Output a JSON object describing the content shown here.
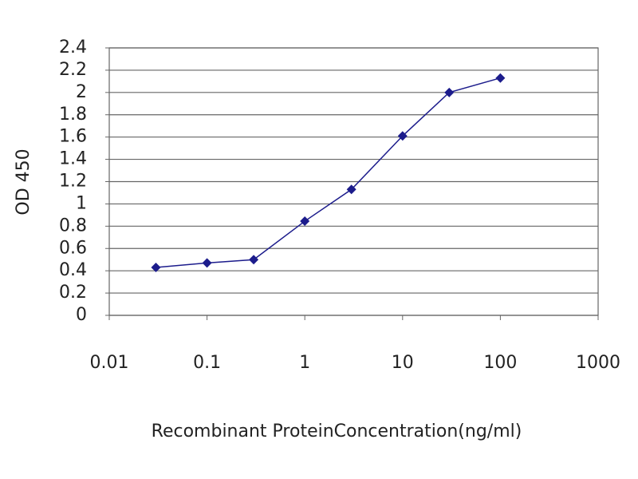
{
  "chart_data": {
    "type": "line",
    "x_label": "Recombinant ProteinConcentration(ng/ml)",
    "y_label": "OD 450",
    "x": [
      0.03,
      0.1,
      0.3,
      1,
      3,
      10,
      30,
      100
    ],
    "values": [
      0.43,
      0.47,
      0.5,
      0.845,
      1.13,
      1.61,
      2.0,
      2.13
    ],
    "color": "#1c1c8c",
    "x_log": true,
    "xlim": [
      0.01,
      1000
    ],
    "xticks": [
      0.01,
      0.1,
      1,
      10,
      100,
      1000
    ],
    "ylim": [
      0,
      2.4
    ],
    "yticks": [
      0,
      0.2,
      0.4,
      0.6,
      0.8,
      1,
      1.2,
      1.4,
      1.6,
      1.8,
      2,
      2.2,
      2.4
    ],
    "grid": true
  }
}
